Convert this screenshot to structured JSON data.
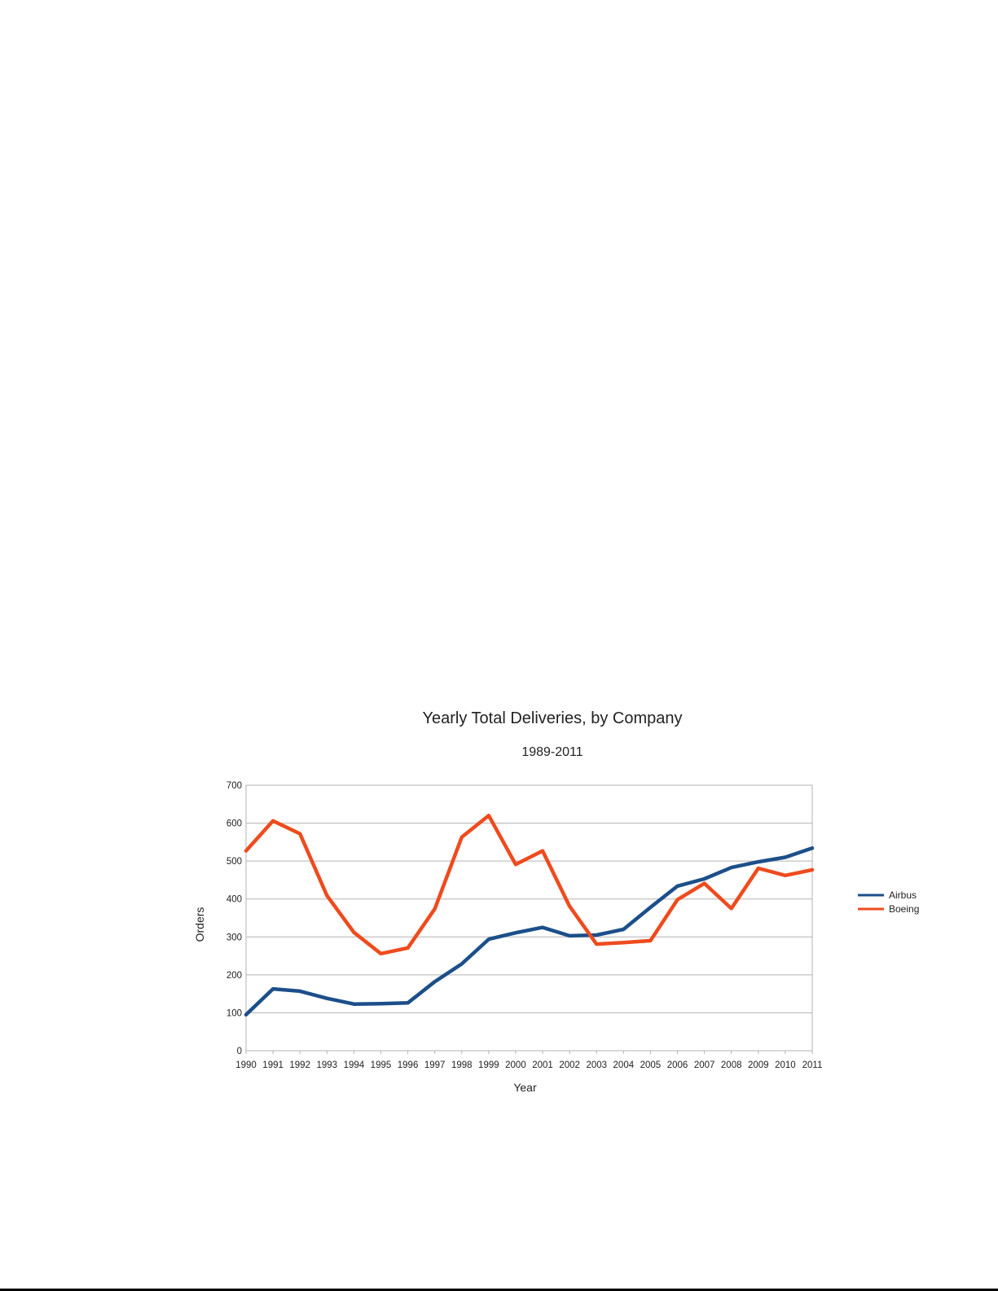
{
  "chart_data": {
    "type": "line",
    "title": "Yearly Total Deliveries, by Company",
    "subtitle": "1989-2011",
    "xlabel": "Year",
    "ylabel": "Orders",
    "categories": [
      "1990",
      "1991",
      "1992",
      "1993",
      "1994",
      "1995",
      "1996",
      "1997",
      "1998",
      "1999",
      "2000",
      "2001",
      "2002",
      "2003",
      "2004",
      "2005",
      "2006",
      "2007",
      "2008",
      "2009",
      "2010",
      "2011"
    ],
    "ylim": [
      0,
      700
    ],
    "yticks": [
      "0",
      "100",
      "200",
      "300",
      "400",
      "500",
      "600",
      "700"
    ],
    "grid": true,
    "legend_position": "right",
    "series": [
      {
        "name": "Airbus",
        "color": "#1c4f8a",
        "values": [
          95,
          163,
          157,
          138,
          123,
          124,
          126,
          182,
          229,
          294,
          311,
          325,
          303,
          305,
          320,
          378,
          434,
          453,
          483,
          498,
          510,
          534
        ]
      },
      {
        "name": "Boeing",
        "color": "#ee4b1e",
        "values": [
          527,
          606,
          572,
          409,
          312,
          256,
          271,
          374,
          563,
          620,
          491,
          527,
          381,
          281,
          285,
          290,
          398,
          441,
          375,
          481,
          462,
          477
        ]
      }
    ]
  }
}
